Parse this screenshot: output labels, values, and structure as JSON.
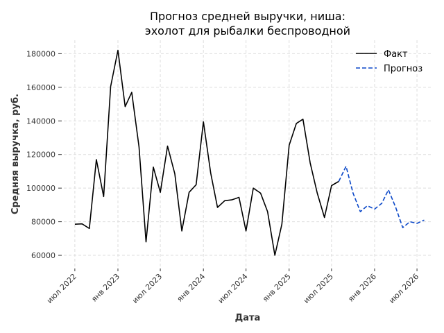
{
  "chart_data": {
    "type": "line",
    "title_line1": "Прогноз средней выручки, ниша:",
    "title_line2": "эхолот для рыбалки беспроводной",
    "xlabel": "Дата",
    "ylabel": "Средняя выручка, руб.",
    "x_ticks": [
      "июл 2022",
      "янв 2023",
      "июл 2023",
      "янв 2024",
      "июл 2024",
      "янв 2025",
      "июл 2025",
      "янв 2026",
      "июл 2026"
    ],
    "y_ticks": [
      "60000",
      "80000",
      "100000",
      "120000",
      "140000",
      "160000",
      "180000"
    ],
    "y_tick_values": [
      60000,
      80000,
      100000,
      120000,
      140000,
      160000,
      180000
    ],
    "ylim": [
      53000,
      188000
    ],
    "xlim": [
      "2022-05-15",
      "2026-09-01"
    ],
    "grid": true,
    "legend_position": "top-right",
    "series": [
      {
        "name": "Факт",
        "color": "#000000",
        "style": "solid",
        "points": [
          {
            "x": "2022-07-01",
            "y": 78500
          },
          {
            "x": "2022-08-01",
            "y": 78700
          },
          {
            "x": "2022-09-01",
            "y": 76000
          },
          {
            "x": "2022-10-01",
            "y": 117000
          },
          {
            "x": "2022-11-01",
            "y": 95000
          },
          {
            "x": "2022-12-01",
            "y": 160500
          },
          {
            "x": "2023-01-01",
            "y": 182000
          },
          {
            "x": "2023-02-01",
            "y": 148500
          },
          {
            "x": "2023-03-01",
            "y": 157000
          },
          {
            "x": "2023-04-01",
            "y": 124500
          },
          {
            "x": "2023-05-01",
            "y": 68000
          },
          {
            "x": "2023-06-01",
            "y": 112500
          },
          {
            "x": "2023-07-01",
            "y": 97500
          },
          {
            "x": "2023-08-01",
            "y": 125000
          },
          {
            "x": "2023-09-01",
            "y": 108500
          },
          {
            "x": "2023-10-01",
            "y": 74500
          },
          {
            "x": "2023-11-01",
            "y": 97500
          },
          {
            "x": "2023-12-01",
            "y": 102000
          },
          {
            "x": "2024-01-01",
            "y": 139500
          },
          {
            "x": "2024-02-01",
            "y": 109000
          },
          {
            "x": "2024-03-01",
            "y": 88500
          },
          {
            "x": "2024-04-01",
            "y": 92500
          },
          {
            "x": "2024-05-01",
            "y": 93000
          },
          {
            "x": "2024-06-01",
            "y": 94500
          },
          {
            "x": "2024-07-01",
            "y": 74500
          },
          {
            "x": "2024-08-01",
            "y": 100000
          },
          {
            "x": "2024-09-01",
            "y": 97000
          },
          {
            "x": "2024-10-01",
            "y": 86000
          },
          {
            "x": "2024-11-01",
            "y": 60000
          },
          {
            "x": "2024-12-01",
            "y": 78500
          },
          {
            "x": "2025-01-01",
            "y": 125500
          },
          {
            "x": "2025-02-01",
            "y": 138500
          },
          {
            "x": "2025-03-01",
            "y": 141000
          },
          {
            "x": "2025-04-01",
            "y": 115000
          },
          {
            "x": "2025-05-01",
            "y": 97000
          },
          {
            "x": "2025-06-01",
            "y": 82500
          },
          {
            "x": "2025-07-01",
            "y": 101500
          },
          {
            "x": "2025-08-01",
            "y": 104000
          }
        ]
      },
      {
        "name": "Прогноз",
        "color": "#0a47c8",
        "style": "dashed",
        "points": [
          {
            "x": "2025-08-01",
            "y": 104000
          },
          {
            "x": "2025-09-01",
            "y": 113000
          },
          {
            "x": "2025-10-01",
            "y": 97000
          },
          {
            "x": "2025-11-01",
            "y": 86000
          },
          {
            "x": "2025-12-01",
            "y": 89500
          },
          {
            "x": "2026-01-01",
            "y": 87500
          },
          {
            "x": "2026-02-01",
            "y": 91000
          },
          {
            "x": "2026-03-01",
            "y": 99000
          },
          {
            "x": "2026-04-01",
            "y": 88500
          },
          {
            "x": "2026-05-01",
            "y": 76500
          },
          {
            "x": "2026-06-01",
            "y": 80000
          },
          {
            "x": "2026-07-01",
            "y": 79000
          },
          {
            "x": "2026-08-01",
            "y": 81000
          }
        ]
      }
    ]
  }
}
